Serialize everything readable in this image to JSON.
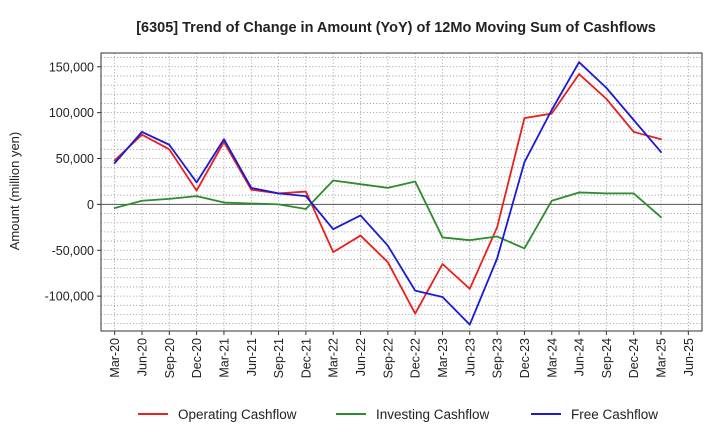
{
  "chart_data": {
    "type": "line",
    "title": "[6305]  Trend of Change in Amount (YoY) of 12Mo Moving Sum of Cashflows",
    "xlabel": "",
    "ylabel": "Amount (million yen)",
    "categories": [
      "Mar-20",
      "Jun-20",
      "Sep-20",
      "Dec-20",
      "Mar-21",
      "Jun-21",
      "Sep-21",
      "Dec-21",
      "Mar-22",
      "Jun-22",
      "Sep-22",
      "Dec-22",
      "Mar-23",
      "Jun-23",
      "Sep-23",
      "Dec-23",
      "Mar-24",
      "Jun-24",
      "Sep-24",
      "Dec-24",
      "Mar-25",
      "Jun-25"
    ],
    "ylim": [
      -138000,
      165000
    ],
    "yticks": [
      150000,
      100000,
      50000,
      0,
      -50000,
      -100000
    ],
    "ytick_labels": [
      "150,000",
      "100,000",
      "50,000",
      "0",
      "-50,000",
      "-100,000"
    ],
    "grid": true,
    "legend_position": "bottom",
    "series": [
      {
        "name": "Operating Cashflow",
        "color": "#e8201e",
        "values": [
          48000,
          76000,
          60000,
          15000,
          68000,
          16000,
          12000,
          14000,
          -52000,
          -34000,
          -63000,
          -119000,
          -65000,
          -92000,
          -25000,
          94000,
          99000,
          142000,
          115000,
          79000,
          71000,
          null
        ]
      },
      {
        "name": "Investing Cashflow",
        "color": "#2e8b2e",
        "values": [
          -4000,
          4000,
          6000,
          9000,
          2000,
          1000,
          0,
          -5000,
          26000,
          22000,
          18000,
          25000,
          -36000,
          -39000,
          -35000,
          -48000,
          4000,
          13000,
          12000,
          12000,
          -14000,
          null
        ]
      },
      {
        "name": "Free Cashflow",
        "color": "#1a1ad6",
        "values": [
          45000,
          79000,
          65000,
          24000,
          71000,
          18000,
          12000,
          9000,
          -27000,
          -12000,
          -45000,
          -94000,
          -101000,
          -131000,
          -59000,
          46000,
          103000,
          155000,
          127000,
          92000,
          57000,
          null
        ]
      }
    ]
  }
}
